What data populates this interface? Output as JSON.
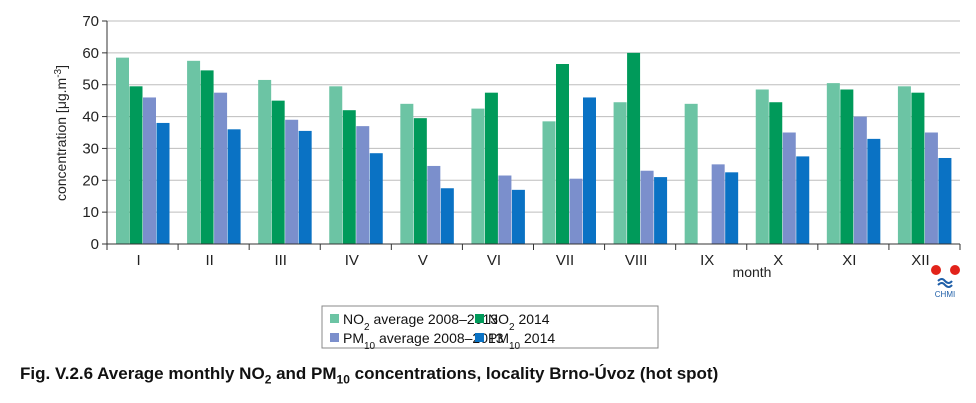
{
  "chart_data": {
    "type": "bar",
    "categories": [
      "I",
      "II",
      "III",
      "IV",
      "V",
      "VI",
      "VII",
      "VIII",
      "IX",
      "X",
      "XI",
      "XII"
    ],
    "series": [
      {
        "name": "NO2 average 2008–2013",
        "label_base": "NO",
        "label_sub": "2",
        "label_rest": " average 2008–2013",
        "color": "#6cc4a4",
        "values": [
          58.5,
          57.5,
          51.5,
          49.5,
          44,
          42.5,
          38.5,
          44.5,
          44,
          48.5,
          50.5,
          49.5
        ]
      },
      {
        "name": "NO2 2014",
        "label_base": "NO",
        "label_sub": "2",
        "label_rest": "  2014",
        "color": "#009a5a",
        "values": [
          49.5,
          54.5,
          45,
          42,
          39.5,
          47.5,
          56.5,
          60,
          null,
          44.5,
          48.5,
          47.5
        ]
      },
      {
        "name": "PM10 average 2008–2013",
        "label_base": "PM",
        "label_sub": "10",
        "label_rest": " average 2008–2013",
        "color": "#7b8fcc",
        "values": [
          46,
          47.5,
          39,
          37,
          24.5,
          21.5,
          20.5,
          23,
          25,
          35,
          40,
          35
        ]
      },
      {
        "name": "PM10 2014",
        "label_base": "PM",
        "label_sub": "10",
        "label_rest": " 2014",
        "color": "#0a72c4",
        "values": [
          38,
          36,
          35.5,
          28.5,
          17.5,
          17,
          46,
          21,
          22.5,
          27.5,
          33,
          27
        ]
      }
    ],
    "ylabel": "concentration [μg.m",
    "ylabel_sup": "-3",
    "ylabel_close": "]",
    "xlabel": "month",
    "ylim": [
      0,
      70
    ],
    "yticks": [
      0,
      10,
      20,
      30,
      40,
      50,
      60,
      70
    ],
    "legend_position": "bottom-center"
  },
  "logo": {
    "text": "CHMI",
    "dot_color": "#e2231a",
    "wave_color": "#1f5fa8"
  },
  "caption": {
    "prefix": "Fig. V.2.6  Average monthly NO",
    "sub1": "2",
    "mid": " and PM",
    "sub2": "10",
    "suffix": "  concentrations, locality Brno-Úvoz (hot spot)"
  }
}
